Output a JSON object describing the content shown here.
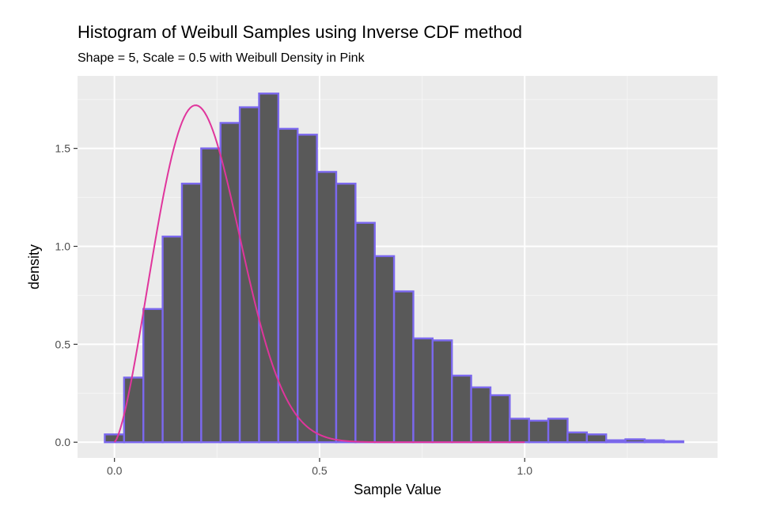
{
  "chart_data": {
    "type": "bar",
    "title": "Histogram of Weibull Samples using Inverse CDF method",
    "subtitle": "Shape = 5, Scale = 0.5 with Weibull Density in Pink",
    "xlabel": "Sample Value",
    "ylabel": "density",
    "xlim": [
      -0.09,
      1.47
    ],
    "ylim": [
      -0.08,
      1.87
    ],
    "x_ticks": [
      0.0,
      0.5,
      1.0
    ],
    "x_tick_labels": [
      "0.0",
      "0.5",
      "1.0"
    ],
    "y_ticks": [
      0.0,
      0.5,
      1.0,
      1.5
    ],
    "y_tick_labels": [
      "0.0",
      "0.5",
      "1.0",
      "1.5"
    ],
    "grid": true,
    "bin_width": 0.047,
    "bins": [
      {
        "x": 0.0,
        "density": 0.04
      },
      {
        "x": 0.047,
        "density": 0.33
      },
      {
        "x": 0.094,
        "density": 0.68
      },
      {
        "x": 0.141,
        "density": 1.05
      },
      {
        "x": 0.188,
        "density": 1.32
      },
      {
        "x": 0.235,
        "density": 1.5
      },
      {
        "x": 0.282,
        "density": 1.63
      },
      {
        "x": 0.329,
        "density": 1.71
      },
      {
        "x": 0.376,
        "density": 1.78
      },
      {
        "x": 0.423,
        "density": 1.6
      },
      {
        "x": 0.47,
        "density": 1.57
      },
      {
        "x": 0.517,
        "density": 1.38
      },
      {
        "x": 0.564,
        "density": 1.32
      },
      {
        "x": 0.611,
        "density": 1.12
      },
      {
        "x": 0.658,
        "density": 0.95
      },
      {
        "x": 0.705,
        "density": 0.77
      },
      {
        "x": 0.752,
        "density": 0.53
      },
      {
        "x": 0.799,
        "density": 0.52
      },
      {
        "x": 0.846,
        "density": 0.34
      },
      {
        "x": 0.893,
        "density": 0.28
      },
      {
        "x": 0.94,
        "density": 0.24
      },
      {
        "x": 0.987,
        "density": 0.12
      },
      {
        "x": 1.034,
        "density": 0.11
      },
      {
        "x": 1.081,
        "density": 0.12
      },
      {
        "x": 1.128,
        "density": 0.05
      },
      {
        "x": 1.175,
        "density": 0.04
      },
      {
        "x": 1.222,
        "density": 0.01
      },
      {
        "x": 1.269,
        "density": 0.015
      },
      {
        "x": 1.316,
        "density": 0.01
      },
      {
        "x": 1.363,
        "density": 0.005
      }
    ],
    "density_curve": {
      "shape": 5,
      "scale": 0.5,
      "x_range": [
        0.0,
        1.0
      ]
    },
    "colors": {
      "bar_fill": "#595959",
      "bar_outline": "#7b68ee",
      "curve": "#e0359c",
      "panel_background": "#ebebeb",
      "grid_major": "#ffffff",
      "grid_minor": "#f5f5f5"
    }
  }
}
